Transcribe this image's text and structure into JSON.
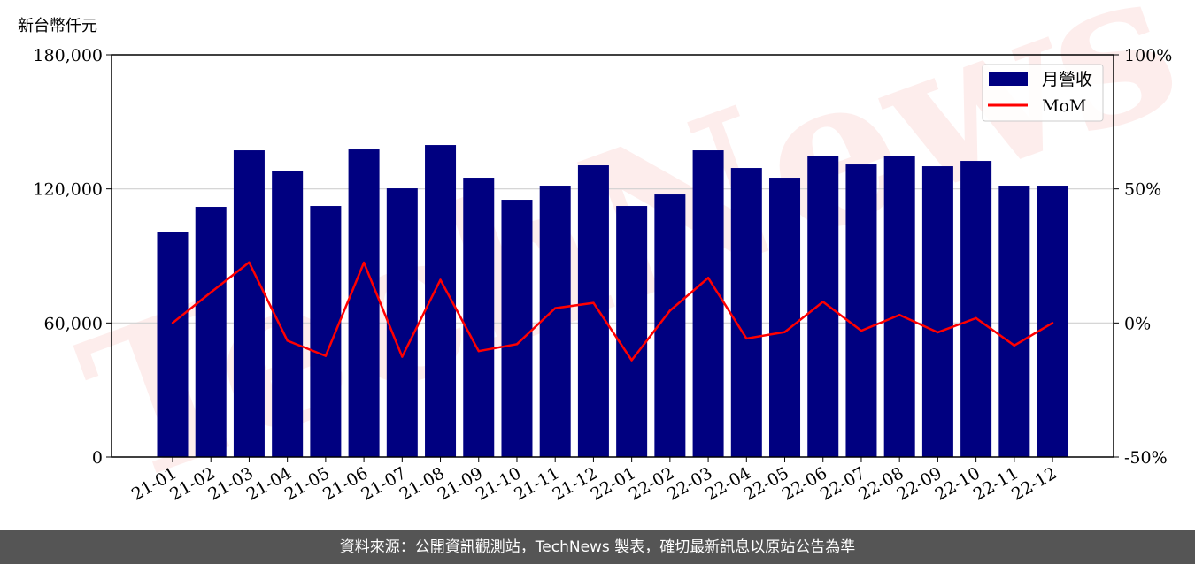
{
  "chart_data": {
    "type": "bar",
    "ylabel": "新台幣仟元",
    "categories": [
      "21-01",
      "21-02",
      "21-03",
      "21-04",
      "21-05",
      "21-06",
      "21-07",
      "21-08",
      "21-09",
      "21-10",
      "21-11",
      "21-12",
      "22-01",
      "22-02",
      "22-03",
      "22-04",
      "22-05",
      "22-06",
      "22-07",
      "22-08",
      "22-09",
      "22-10",
      "22-11",
      "22-12"
    ],
    "series": [
      {
        "name": "月營收",
        "type": "bar",
        "axis": "left",
        "color": "#000080",
        "values": [
          100500,
          111950,
          137260,
          128160,
          112340,
          137660,
          120250,
          139630,
          125000,
          115110,
          121440,
          130540,
          112340,
          117480,
          137260,
          129350,
          125000,
          134890,
          130930,
          134890,
          130140,
          132510,
          121440,
          121440
        ]
      },
      {
        "name": "MoM",
        "type": "line",
        "axis": "right",
        "unit": "%",
        "color": "#ff0000",
        "values": [
          0,
          11.4,
          22.6,
          -6.6,
          -12.3,
          22.5,
          -12.6,
          16.1,
          -10.5,
          -7.9,
          5.5,
          7.5,
          -13.9,
          4.6,
          16.8,
          -5.8,
          -3.4,
          7.9,
          -2.9,
          3.0,
          -3.5,
          1.8,
          -8.4,
          0
        ]
      }
    ],
    "y_left": {
      "ylim": [
        0,
        180000
      ],
      "ticks": [
        0,
        60000,
        120000,
        180000
      ],
      "tick_labels": [
        "0",
        "60,000",
        "120,000",
        "180,000"
      ]
    },
    "y_right": {
      "ylim": [
        -50,
        100
      ],
      "ticks": [
        -50,
        0,
        50,
        100
      ],
      "tick_labels": [
        "-50%",
        "0%",
        "50%",
        "100%"
      ]
    },
    "grid": "horizontal",
    "legend": "top-right",
    "watermark": "TechNews"
  },
  "footer": {
    "source": "資料來源：公開資訊觀測站，TechNews 製表，確切最新訊息以原站公告為準"
  }
}
